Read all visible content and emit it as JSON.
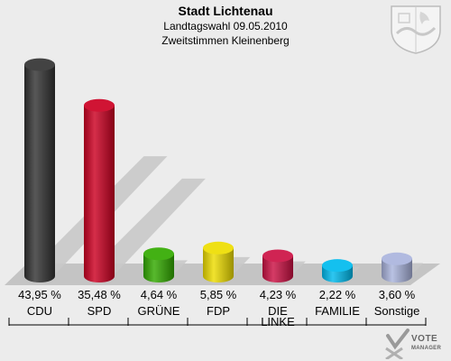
{
  "header": {
    "title": "Stadt Lichtenau",
    "subtitle1": "Landtagswahl 09.05.2010",
    "subtitle2": "Zweitstimmen Kleinenberg"
  },
  "chart_data": {
    "type": "bar",
    "categories": [
      "CDU",
      "SPD",
      "GRÜNE",
      "FDP",
      "DIE LINKE",
      "FAMILIE",
      "Sonstige"
    ],
    "category_lines": [
      [
        "CDU"
      ],
      [
        "SPD"
      ],
      [
        "GRÜNE"
      ],
      [
        "FDP"
      ],
      [
        "DIE",
        "LINKE"
      ],
      [
        "FAMILIE"
      ],
      [
        "Sonstige"
      ]
    ],
    "values": [
      43.95,
      35.48,
      4.64,
      5.85,
      4.23,
      2.22,
      3.6
    ],
    "value_labels": [
      "43,95 %",
      "35,48 %",
      "4,64 %",
      "5,85 %",
      "4,23 %",
      "2,22 %",
      "3,60 %"
    ],
    "colors": [
      "#333333",
      "#cc0022",
      "#33aa00",
      "#eedd00",
      "#cc1144",
      "#00bbee",
      "#aab4dd"
    ],
    "title": "Stadt Lichtenau",
    "xlabel": "",
    "ylabel": "",
    "ylim": [
      0,
      45
    ],
    "grid": false,
    "legend": "none"
  },
  "watermark": {
    "line1": "VOTE",
    "line2": "MANAGER"
  }
}
